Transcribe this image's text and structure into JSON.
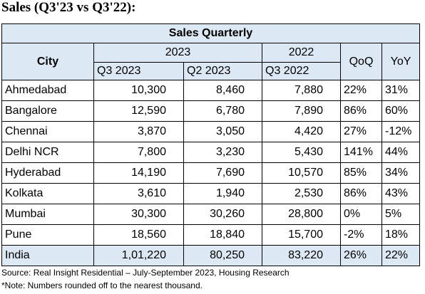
{
  "heading": "Sales (Q3'23 vs Q3'22):",
  "table": {
    "title": "Sales Quarterly",
    "city_header": "City",
    "year_2023": "2023",
    "year_2022": "2022",
    "qoq_header": "QoQ",
    "yoy_header": "YoY",
    "sub_headers": [
      "Q3 2023",
      "Q2 2023",
      "Q3 2022"
    ],
    "rows": [
      {
        "city": "Ahmedabad",
        "q3_2023": "10,300",
        "q2_2023": "8,460",
        "q3_2022": "7,880",
        "qoq": "22%",
        "yoy": "31%"
      },
      {
        "city": "Bangalore",
        "q3_2023": "12,590",
        "q2_2023": "6,780",
        "q3_2022": "7,890",
        "qoq": "86%",
        "yoy": "60%"
      },
      {
        "city": "Chennai",
        "q3_2023": "3,870",
        "q2_2023": "3,050",
        "q3_2022": "4,420",
        "qoq": "27%",
        "yoy": "-12%"
      },
      {
        "city": "Delhi NCR",
        "q3_2023": "7,800",
        "q2_2023": "3,230",
        "q3_2022": "5,430",
        "qoq": "141%",
        "yoy": "44%"
      },
      {
        "city": "Hyderabad",
        "q3_2023": "14,190",
        "q2_2023": "7,690",
        "q3_2022": "10,570",
        "qoq": "85%",
        "yoy": "34%"
      },
      {
        "city": "Kolkata",
        "q3_2023": "3,610",
        "q2_2023": "1,940",
        "q3_2022": "2,530",
        "qoq": "86%",
        "yoy": "43%"
      },
      {
        "city": "Mumbai",
        "q3_2023": "30,300",
        "q2_2023": "30,260",
        "q3_2022": "28,800",
        "qoq": "0%",
        "yoy": "5%"
      },
      {
        "city": "Pune",
        "q3_2023": "18,560",
        "q2_2023": "18,840",
        "q3_2022": "15,700",
        "qoq": "-2%",
        "yoy": "18%"
      }
    ],
    "total": {
      "city": "India",
      "q3_2023": "1,01,220",
      "q2_2023": "80,250",
      "q3_2022": "83,220",
      "qoq": "26%",
      "yoy": "22%"
    }
  },
  "source": "Source: Real Insight Residential – July-September 2023, Housing Research",
  "footnote": "*Note: Numbers rounded off to the nearest thousand.",
  "colors": {
    "header_fill": "#dde8f5",
    "border": "#000000"
  }
}
